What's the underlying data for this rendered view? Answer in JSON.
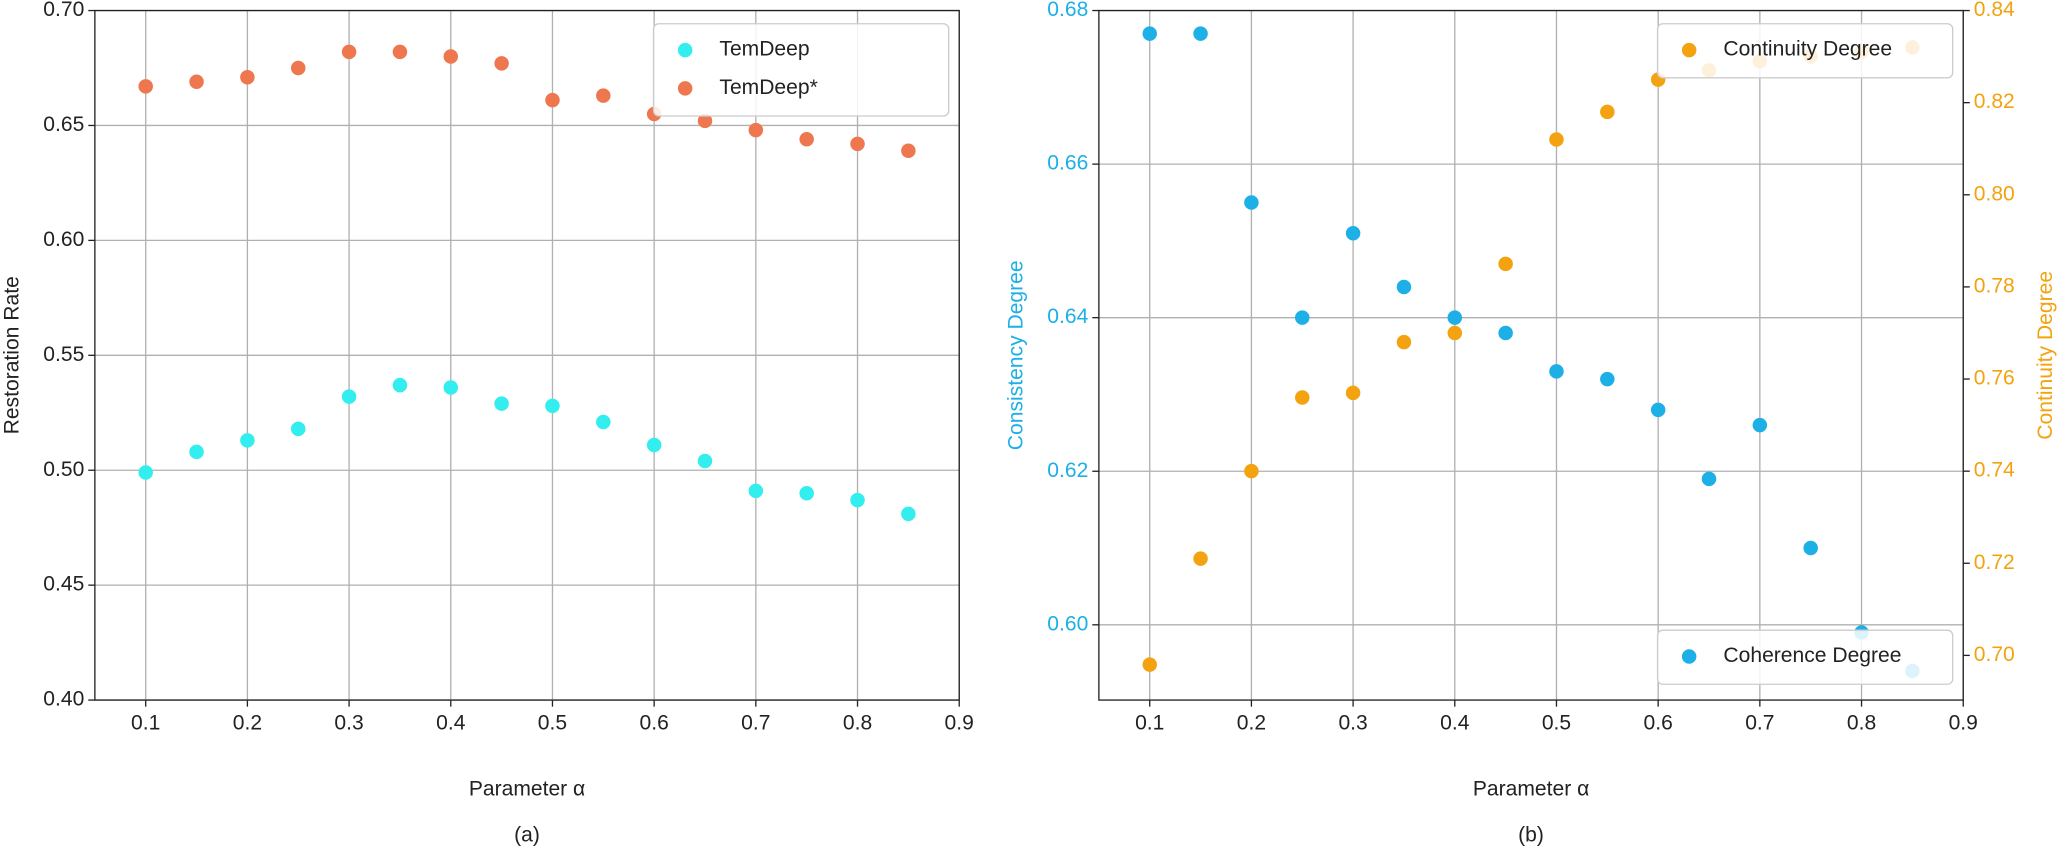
{
  "chart_data": [
    {
      "type": "scatter",
      "xlabel": "Parameter α",
      "ylabel": "Restoration Rate",
      "caption": "(a)",
      "x": [
        0.1,
        0.15,
        0.2,
        0.25,
        0.3,
        0.35,
        0.4,
        0.45,
        0.5,
        0.55,
        0.6,
        0.65,
        0.7,
        0.75,
        0.8,
        0.85
      ],
      "xlim": [
        0.05,
        0.9
      ],
      "xticks": [
        0.1,
        0.2,
        0.3,
        0.4,
        0.5,
        0.6,
        0.7,
        0.8,
        0.9
      ],
      "ylim": [
        0.4,
        0.7
      ],
      "yticks": [
        {
          "value": 0.4,
          "label": "0.40"
        },
        {
          "value": 0.45,
          "label": "0.45"
        },
        {
          "value": 0.5,
          "label": "0.50"
        },
        {
          "value": 0.55,
          "label": "0.55"
        },
        {
          "value": 0.6,
          "label": "0.60"
        },
        {
          "value": 0.65,
          "label": "0.65"
        },
        {
          "value": 0.7,
          "label": "0.70"
        }
      ],
      "grid": true,
      "series": [
        {
          "name": "TemDeep",
          "color": "#33eeee",
          "legend_loc": "upper right",
          "values": [
            0.499,
            0.508,
            0.513,
            0.518,
            0.532,
            0.537,
            0.536,
            0.529,
            0.528,
            0.521,
            0.511,
            0.504,
            0.491,
            0.49,
            0.487,
            0.481
          ]
        },
        {
          "name": "TemDeep*",
          "color": "#ee7750",
          "legend_loc": "upper right",
          "values": [
            0.667,
            0.669,
            0.671,
            0.675,
            0.682,
            0.682,
            0.68,
            0.677,
            0.661,
            0.663,
            0.655,
            0.652,
            0.648,
            0.644,
            0.642,
            0.639
          ]
        }
      ]
    },
    {
      "type": "scatter",
      "xlabel": "Parameter α",
      "ylabel": "Consistency Degree",
      "y2label": "Continuity Degree",
      "caption": "(b)",
      "ylabel_color": "#1cb0e6",
      "y2label_color": "#f2a30f",
      "x": [
        0.1,
        0.15,
        0.2,
        0.25,
        0.3,
        0.35,
        0.4,
        0.45,
        0.5,
        0.55,
        0.6,
        0.65,
        0.7,
        0.75,
        0.8,
        0.85
      ],
      "xlim": [
        0.05,
        0.9
      ],
      "xticks": [
        0.1,
        0.2,
        0.3,
        0.4,
        0.5,
        0.6,
        0.7,
        0.8,
        0.9
      ],
      "ylim": [
        0.5902,
        0.68
      ],
      "yticks": [
        {
          "value": 0.6,
          "label": "0.60"
        },
        {
          "value": 0.62,
          "label": "0.62"
        },
        {
          "value": 0.64,
          "label": "0.64"
        },
        {
          "value": 0.66,
          "label": "0.66"
        },
        {
          "value": 0.68,
          "label": "0.68"
        }
      ],
      "y2lim": [
        0.6903,
        0.84
      ],
      "y2ticks": [
        {
          "value": 0.7,
          "label": "0.70"
        },
        {
          "value": 0.72,
          "label": "0.72"
        },
        {
          "value": 0.74,
          "label": "0.74"
        },
        {
          "value": 0.76,
          "label": "0.76"
        },
        {
          "value": 0.78,
          "label": "0.78"
        },
        {
          "value": 0.8,
          "label": "0.80"
        },
        {
          "value": 0.82,
          "label": "0.82"
        },
        {
          "value": 0.84,
          "label": "0.84"
        }
      ],
      "grid": true,
      "series": [
        {
          "name": "Continuity Degree",
          "color": "#f2a30f",
          "axis": "y2",
          "legend_loc": "upper right",
          "values": [
            0.698,
            0.721,
            0.74,
            0.756,
            0.757,
            0.768,
            0.77,
            0.785,
            0.812,
            0.818,
            0.825,
            0.827,
            0.829,
            0.83,
            0.831,
            0.832
          ]
        },
        {
          "name": "Coherence Degree",
          "color": "#1cb0e6",
          "legend_loc": "lower right",
          "values": [
            0.677,
            0.677,
            0.655,
            0.64,
            0.651,
            0.644,
            0.64,
            0.638,
            0.633,
            0.632,
            0.628,
            0.619,
            0.626,
            0.61,
            0.599,
            0.594
          ]
        }
      ]
    }
  ]
}
